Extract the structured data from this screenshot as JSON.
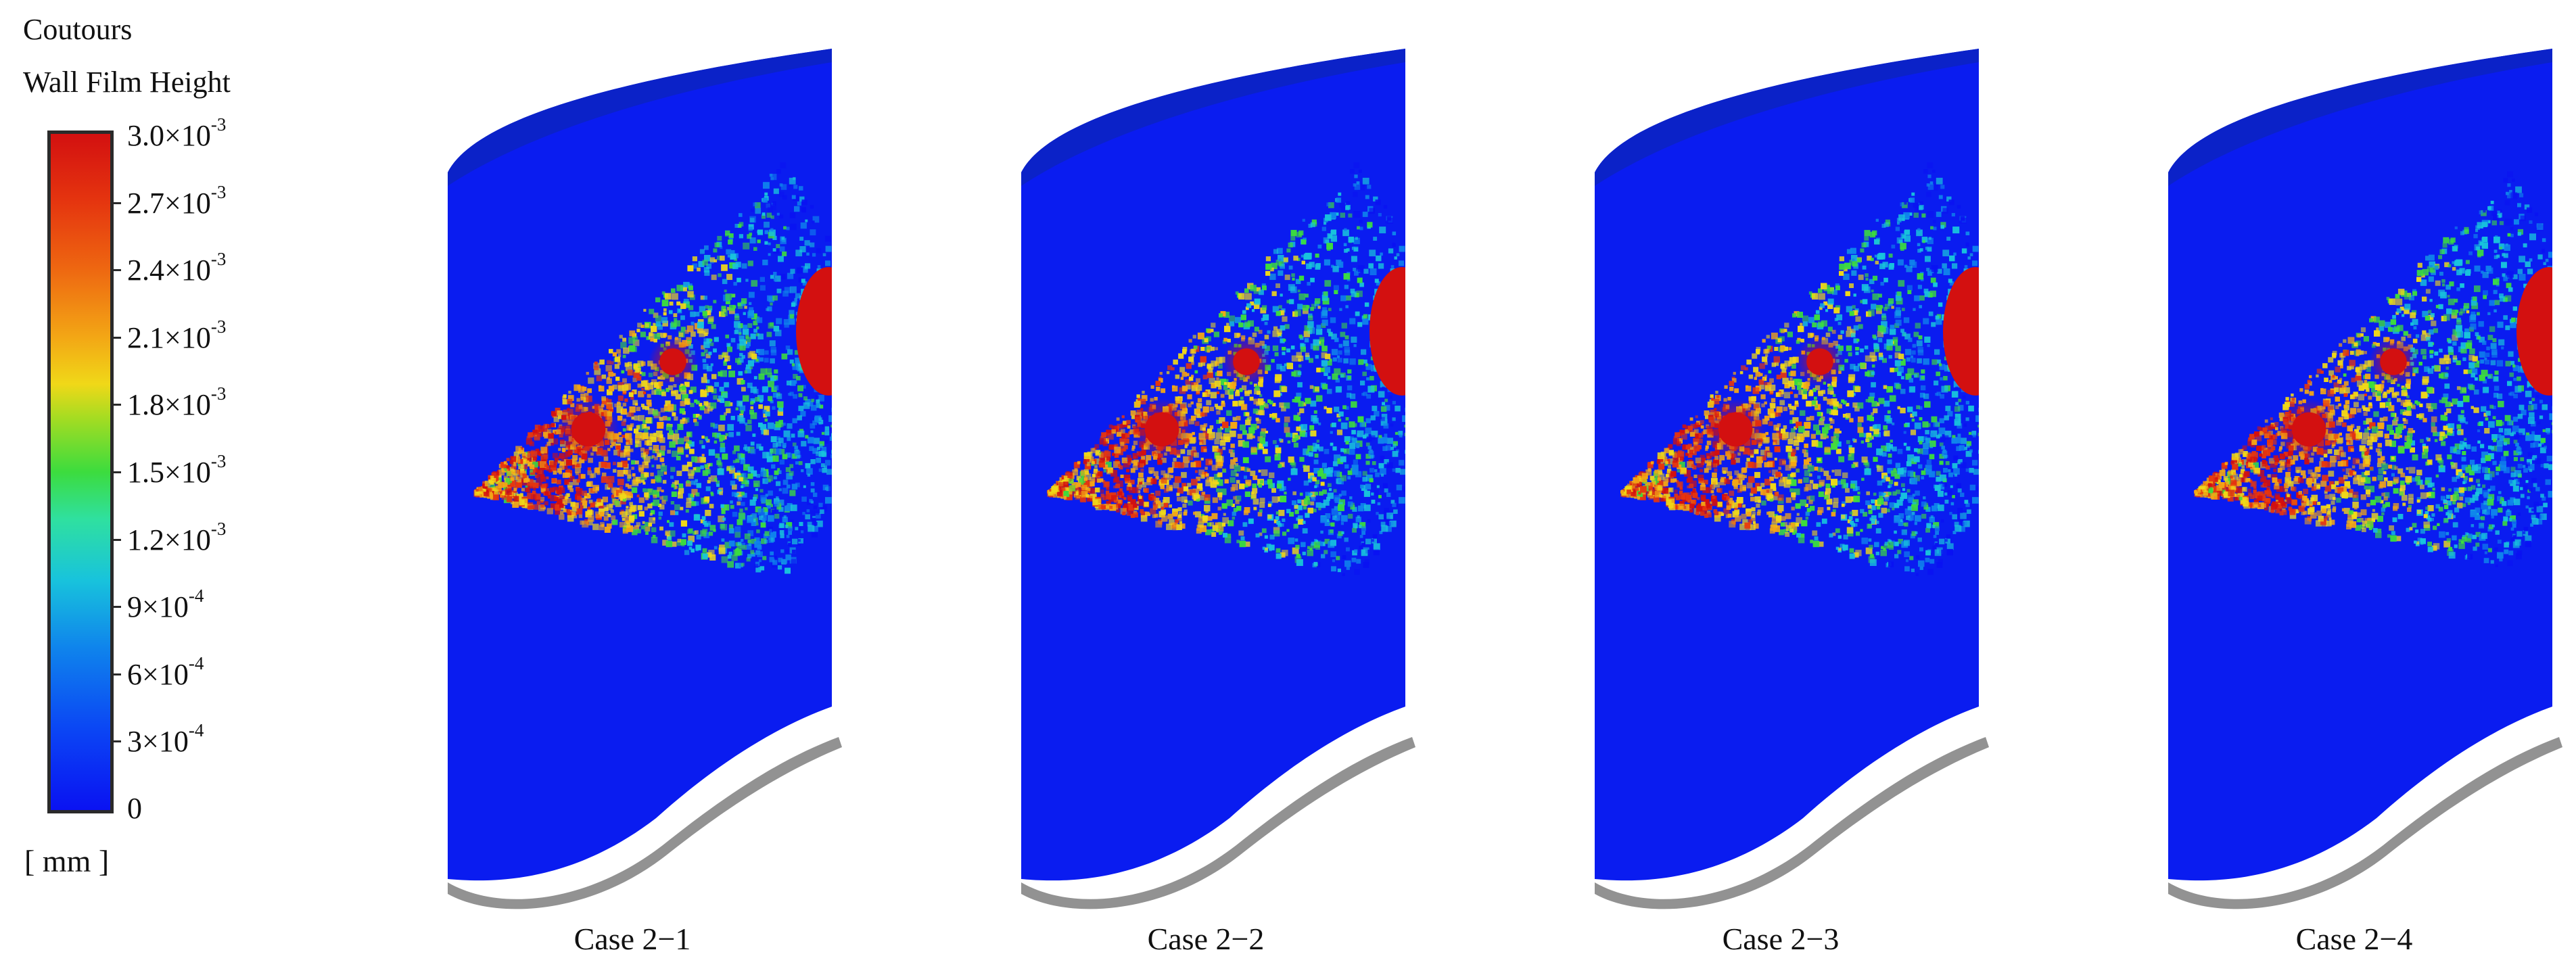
{
  "legend": {
    "title_line1": "Coutours",
    "title_line2": "Wall Film Height",
    "ticks": [
      {
        "mantissa": "3.0×10",
        "exp": "-3"
      },
      {
        "mantissa": "2.7×10",
        "exp": "-3"
      },
      {
        "mantissa": "2.4×10",
        "exp": "-3"
      },
      {
        "mantissa": "2.1×10",
        "exp": "-3"
      },
      {
        "mantissa": "1.8×10",
        "exp": "-3"
      },
      {
        "mantissa": "1.5×10",
        "exp": "-3"
      },
      {
        "mantissa": "1.2×10",
        "exp": "-3"
      },
      {
        "mantissa": "9×10",
        "exp": "-4"
      },
      {
        "mantissa": "6×10",
        "exp": "-4"
      },
      {
        "mantissa": "3×10",
        "exp": "-4"
      },
      {
        "mantissa": "0",
        "exp": ""
      }
    ],
    "unit": "[ mm ]",
    "colormap": [
      "#0a12f2",
      "#0f84ec",
      "#18c3dc",
      "#3cdc3e",
      "#f0d818",
      "#f3a615",
      "#e5350f",
      "#d31010"
    ]
  },
  "panels": [
    {
      "label": "Case 2−1",
      "spray_spread": 1.0,
      "hot_spots": 2
    },
    {
      "label": "Case 2−2",
      "spray_spread": 1.0,
      "hot_spots": 2
    },
    {
      "label": "Case 2−3",
      "spray_spread": 1.0,
      "hot_spots": 2
    },
    {
      "label": "Case 2−4",
      "spray_spread": 0.95,
      "hot_spots": 2
    }
  ],
  "colors": {
    "blade_base": "#0a1cf0",
    "blade_top": "#0b22c8",
    "shadow": "#6e6e6e"
  }
}
